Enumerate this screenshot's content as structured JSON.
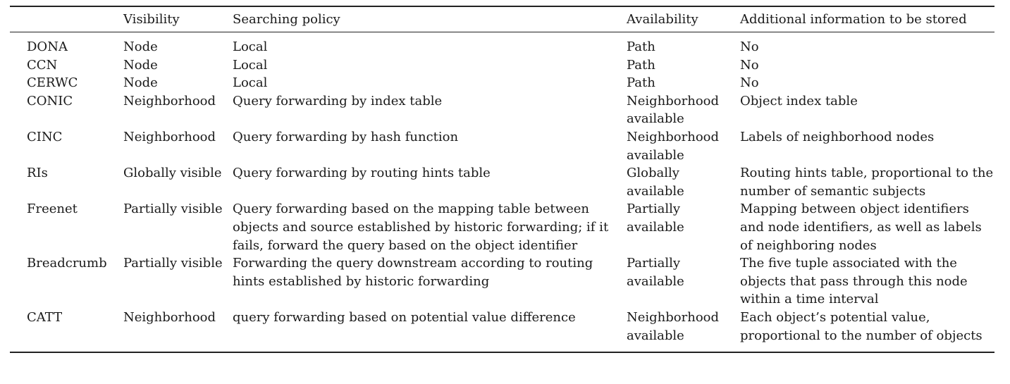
{
  "table": {
    "headers": [
      "",
      "Visibility",
      "Searching policy",
      "Availability",
      "Additional information to be stored"
    ],
    "rows": [
      [
        "DONA",
        "Node",
        "Local",
        "Path",
        "No"
      ],
      [
        "CCN",
        "Node",
        "Local",
        "Path",
        "No"
      ],
      [
        "CERWC",
        "Node",
        "Local",
        "Path",
        "No"
      ],
      [
        "CONIC",
        "Neighborhood",
        "Query forwarding by index table",
        "Neighborhood available",
        "Object index table"
      ],
      [
        "CINC",
        "Neighborhood",
        "Query forwarding by hash function",
        "Neighborhood available",
        "Labels of neighborhood nodes"
      ],
      [
        "RIs",
        "Globally visible",
        "Query forwarding by routing hints table",
        "Globally available",
        "Routing hints table, proportional to the number of semantic subjects"
      ],
      [
        "Freenet",
        "Partially visible",
        "Query forwarding based on the mapping table between objects and source established by historic forwarding; if it fails, forward the query based on the object identifier",
        "Partially available",
        "Mapping between object identifiers and node identifiers, as well as labels of neighboring nodes"
      ],
      [
        "Breadcrumb",
        "Partially visible",
        "Forwarding the query downstream according to routing hints established by historic forwarding",
        "Partially available",
        "The five tuple associated with the objects that pass through this node within a time interval"
      ],
      [
        "CATT",
        "Neighborhood",
        "query forwarding based on potential value difference",
        "Neighborhood available",
        "Each object’s potential value, proportional to the number of objects"
      ]
    ]
  }
}
